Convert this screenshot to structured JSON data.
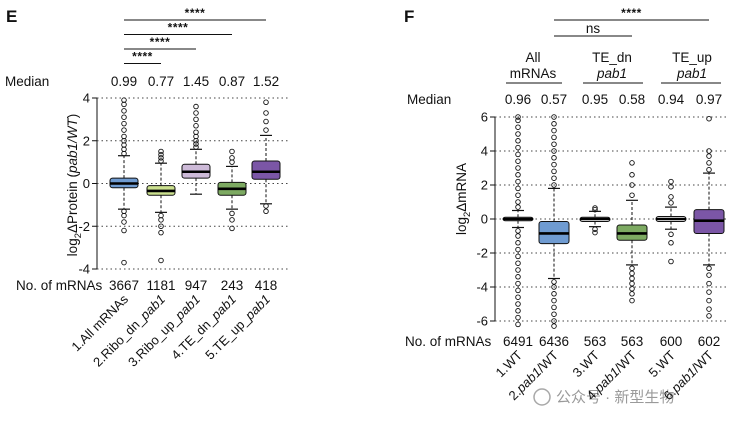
{
  "panel_e": {
    "letter": "E",
    "median_label": "Median",
    "count_label": "No. of mRNAs",
    "ylabel_pre": "log",
    "ylabel_sub": "2",
    "ylabel_mid": "ΔProtein (",
    "ylabel_italic": "pab1/WT",
    "ylabel_post": ")"
  },
  "panel_f": {
    "letter": "F",
    "median_label": "Median",
    "count_label": "No. of mRNAs",
    "ylabel_pre": "log",
    "ylabel_sub": "2",
    "ylabel_mid": "ΔmRNA",
    "group_headers": [
      {
        "line1": "All",
        "line2": "mRNAs",
        "italic2": false
      },
      {
        "line1": "TE_dn",
        "line2": "pab1",
        "italic2": true
      },
      {
        "line1": "TE_up",
        "line2": "pab1",
        "italic2": true
      }
    ]
  },
  "watermark": "公众号 · 新型生物",
  "chart_data": [
    {
      "type": "box",
      "panel": "E",
      "title": "",
      "ylabel": "log2ΔProtein (pab1/WT)",
      "xlabel": "",
      "ylim": [
        -4,
        4
      ],
      "yticks": [
        -4,
        -2,
        0,
        2,
        4
      ],
      "categories": [
        "1.All mRNAs",
        "2.Ribo_dn_pab1",
        "3.Ribo_up_pab1",
        "4.TE_dn_pab1",
        "5.TE_up_pab1"
      ],
      "category_parts": [
        {
          "prefix": "1.All mRNAs",
          "italic": ""
        },
        {
          "prefix": "2.Ribo_dn_",
          "italic": "pab1"
        },
        {
          "prefix": "3.Ribo_up_",
          "italic": "pab1"
        },
        {
          "prefix": "4.TE_dn_",
          "italic": "pab1"
        },
        {
          "prefix": "5.TE_up_",
          "italic": "pab1"
        }
      ],
      "medians": [
        "0.99",
        "0.77",
        "1.45",
        "0.87",
        "1.52"
      ],
      "counts": [
        "3667",
        "1181",
        "947",
        "243",
        "418"
      ],
      "colors": [
        "#6f9bd1",
        "#cbe08f",
        "#cdbad8",
        "#7daa62",
        "#7b56a6"
      ],
      "boxes": [
        {
          "q1": -0.2,
          "median": 0.0,
          "q3": 0.25,
          "whisker_low": -1.2,
          "whisker_high": 1.3,
          "outliers_low": [
            -1.3,
            -1.5,
            -1.8,
            -2.2,
            -3.7
          ],
          "outliers_high": [
            1.4,
            1.6,
            1.8,
            2.0,
            2.2,
            2.5,
            2.8,
            3.1,
            3.4,
            3.7,
            3.9
          ]
        },
        {
          "q1": -0.55,
          "median": -0.35,
          "q3": -0.1,
          "whisker_low": -1.35,
          "whisker_high": 0.95,
          "outliers_low": [
            -1.5,
            -1.7,
            -2.0,
            -2.3,
            -3.6
          ],
          "outliers_high": [
            1.05,
            1.2,
            1.35,
            1.5
          ]
        },
        {
          "q1": 0.25,
          "median": 0.55,
          "q3": 0.9,
          "whisker_low": -0.5,
          "whisker_high": 1.6,
          "outliers_low": [],
          "outliers_high": [
            1.7,
            1.85,
            2.0,
            2.2,
            2.4,
            2.7,
            3.0,
            3.3,
            3.6
          ]
        },
        {
          "q1": -0.55,
          "median": -0.25,
          "q3": 0.05,
          "whisker_low": -1.2,
          "whisker_high": 0.8,
          "outliers_low": [
            -1.4,
            -1.7,
            -2.1
          ],
          "outliers_high": [
            1.0,
            1.2,
            1.5
          ]
        },
        {
          "q1": 0.2,
          "median": 0.55,
          "q3": 1.05,
          "whisker_low": -0.95,
          "whisker_high": 2.25,
          "outliers_low": [
            -1.05,
            -1.3
          ],
          "outliers_high": [
            2.5,
            2.9,
            3.3,
            3.8
          ]
        }
      ],
      "significance": [
        {
          "from": 1,
          "to": 5,
          "label": "****"
        },
        {
          "from": 1,
          "to": 4,
          "label": "****"
        },
        {
          "from": 1,
          "to": 3,
          "label": "****"
        },
        {
          "from": 1,
          "to": 2,
          "label": "****"
        }
      ]
    },
    {
      "type": "box",
      "panel": "F",
      "title": "",
      "ylabel": "log2ΔmRNA",
      "xlabel": "",
      "ylim": [
        -6,
        6
      ],
      "yticks": [
        -6,
        -4,
        -2,
        0,
        2,
        4,
        6
      ],
      "categories": [
        "1.WT",
        "2.pab1/WT",
        "3.WT",
        "4.pab1/WT",
        "5.WT",
        "6.pab1/WT"
      ],
      "category_parts": [
        {
          "prefix": "1.WT",
          "italic": ""
        },
        {
          "prefix": "2.",
          "italic": "pab1",
          "suffix": "/WT"
        },
        {
          "prefix": "3.WT",
          "italic": ""
        },
        {
          "prefix": "4.",
          "italic": "pab1",
          "suffix": "/WT"
        },
        {
          "prefix": "5.WT",
          "italic": ""
        },
        {
          "prefix": "6.",
          "italic": "pab1",
          "suffix": "/WT"
        }
      ],
      "medians": [
        "0.96",
        "0.57",
        "0.95",
        "0.58",
        "0.94",
        "0.97"
      ],
      "counts": [
        "6491",
        "6436",
        "563",
        "563",
        "600",
        "602"
      ],
      "colors": [
        "#ffffff",
        "#6f9bd1",
        "#ffffff",
        "#7daa62",
        "#ffffff",
        "#7b56a6"
      ],
      "boxes": [
        {
          "q1": -0.1,
          "median": 0.0,
          "q3": 0.1,
          "whisker_low": -0.5,
          "whisker_high": 0.5,
          "outliers_low": [
            -0.7,
            -1.0,
            -1.4,
            -1.8,
            -2.2,
            -2.6,
            -3.0,
            -3.4,
            -3.8,
            -4.2,
            -4.6,
            -5.0,
            -5.4,
            -5.8,
            -6.2
          ],
          "outliers_high": [
            0.7,
            1.0,
            1.4,
            1.8,
            2.2,
            2.6,
            3.0,
            3.4,
            3.8,
            4.2,
            4.6,
            5.0,
            5.4,
            5.8,
            6.0
          ]
        },
        {
          "q1": -1.45,
          "median": -0.85,
          "q3": -0.15,
          "whisker_low": -3.5,
          "whisker_high": 1.8,
          "outliers_low": [
            -3.7,
            -4.0,
            -4.4,
            -4.8,
            -5.2,
            -5.6,
            -6.0,
            -6.3
          ],
          "outliers_high": [
            2.0,
            2.4,
            2.8,
            3.2,
            3.6,
            4.0,
            4.4,
            4.8,
            5.2,
            5.6,
            6.0
          ]
        },
        {
          "q1": -0.15,
          "median": 0.0,
          "q3": 0.1,
          "whisker_low": -0.45,
          "whisker_high": 0.45,
          "outliers_low": [
            -0.6,
            -0.8
          ],
          "outliers_high": [
            0.55,
            0.65
          ]
        },
        {
          "q1": -1.25,
          "median": -0.85,
          "q3": -0.35,
          "whisker_low": -2.7,
          "whisker_high": 1.1,
          "outliers_low": [
            -2.9,
            -3.2,
            -3.5,
            -3.8,
            -4.1,
            -4.4,
            -4.8
          ],
          "outliers_high": [
            1.4,
            2.0,
            2.6,
            3.3
          ]
        },
        {
          "q1": -0.15,
          "median": 0.0,
          "q3": 0.15,
          "whisker_low": -0.6,
          "whisker_high": 0.7,
          "outliers_low": [
            -0.9,
            -1.4,
            -2.5
          ],
          "outliers_high": [
            0.95,
            1.3,
            1.9,
            2.2
          ]
        },
        {
          "q1": -0.85,
          "median": -0.1,
          "q3": 0.55,
          "whisker_low": -2.7,
          "whisker_high": 2.7,
          "outliers_low": [
            -2.9,
            -3.3,
            -3.8,
            -4.3,
            -4.8,
            -5.3,
            -5.7
          ],
          "outliers_high": [
            2.9,
            3.3,
            3.7,
            4.0,
            5.9
          ]
        }
      ],
      "significance": [
        {
          "from": 2,
          "to": 6,
          "label": "****"
        },
        {
          "from": 2,
          "to": 4,
          "label": "ns"
        }
      ]
    }
  ]
}
